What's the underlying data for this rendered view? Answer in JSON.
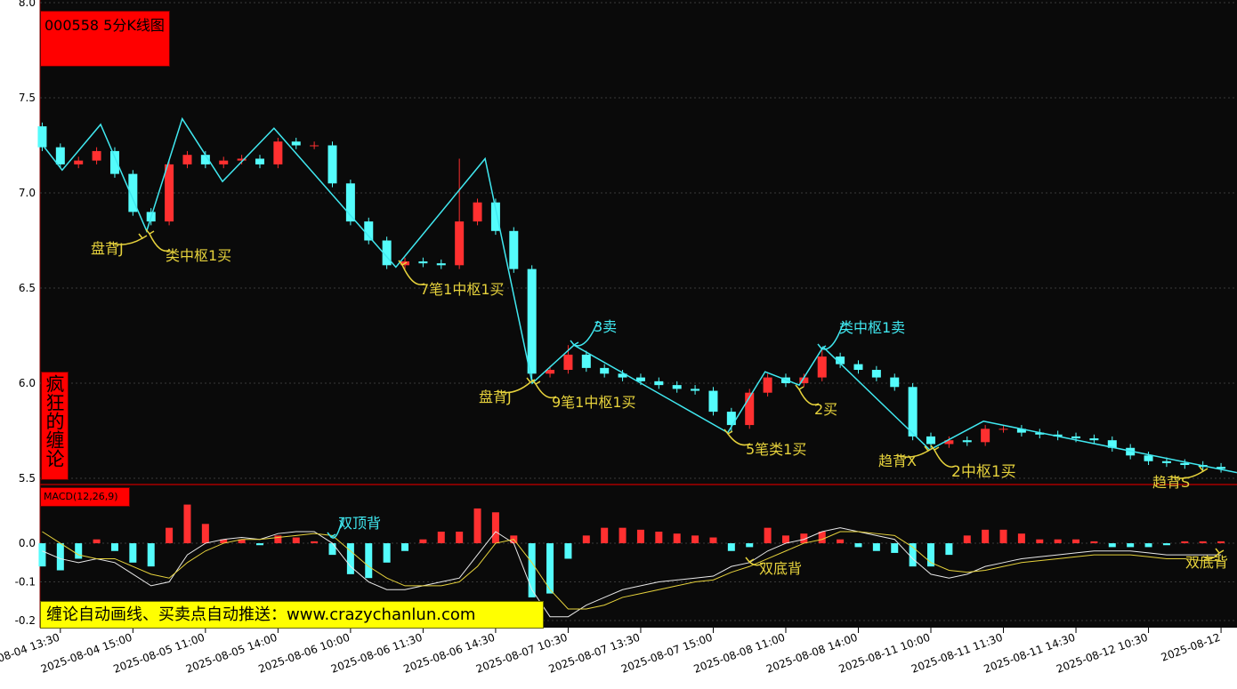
{
  "title": "000558 5分K线图",
  "side_label": "疯狂的缠论",
  "macd_label": "MACD(12,26,9)",
  "banner": "缠论自动画线、买卖点自动推送：www.crazychanlun.com",
  "annotations": [
    "盘背J",
    "类中枢1买",
    "7笔1中枢1买",
    "3卖",
    "盘背J",
    "9笔1中枢1买",
    "5笔类1买",
    "类中枢1卖",
    "2买",
    "趋背X",
    "2中枢1买",
    "趋背S",
    "双顶背",
    "双底背",
    "双底背"
  ],
  "chart_data": [
    {
      "type": "candlestick",
      "xlim": [
        -5.6,
        324.4
      ],
      "ylim": [
        5.5,
        8.0
      ],
      "yticks": [
        {
          "value": 8.0,
          "label": "8.0"
        },
        {
          "value": 7.5,
          "label": "7.5"
        },
        {
          "value": 7.0,
          "label": "7.0"
        },
        {
          "value": 6.5,
          "label": "6.5"
        },
        {
          "value": 6.0,
          "label": "6.0"
        },
        {
          "value": 5.5,
          "label": "5.5"
        }
      ],
      "xticks": [
        {
          "value": 0,
          "label": "2025-08-04 13:30"
        },
        {
          "value": 20,
          "label": "2025-08-04 15:00"
        },
        {
          "value": 40,
          "label": "2025-08-05 11:00"
        },
        {
          "value": 60,
          "label": "2025-08-05 14:00"
        },
        {
          "value": 80,
          "label": "2025-08-06 10:00"
        },
        {
          "value": 100,
          "label": "2025-08-06 11:30"
        },
        {
          "value": 120,
          "label": "2025-08-06 14:30"
        },
        {
          "value": 140,
          "label": "2025-08-07 10:30"
        },
        {
          "value": 160,
          "label": "2025-08-07 13:30"
        },
        {
          "value": 180,
          "label": "2025-08-07 15:00"
        },
        {
          "value": 200,
          "label": "2025-08-08 11:00"
        },
        {
          "value": 220,
          "label": "2025-08-08 14:00"
        },
        {
          "value": 240,
          "label": "2025-08-11 10:00"
        },
        {
          "value": 260,
          "label": "2025-08-11 11:30"
        },
        {
          "value": 280,
          "label": "2025-08-11 14:30"
        },
        {
          "value": 300,
          "label": "2025-08-12 10:30"
        },
        {
          "value": 320,
          "label": "2025-08-12"
        }
      ],
      "grid": true,
      "up_color": "#ff3030",
      "down_color": "#54fcfc",
      "bi_color": "#40e8f0",
      "x": [
        -5,
        0,
        5,
        10,
        15,
        20,
        25,
        30,
        35,
        40,
        45,
        50,
        55,
        60,
        65,
        70,
        75,
        80,
        85,
        90,
        95,
        100,
        105,
        110,
        115,
        120,
        125,
        130,
        135,
        140,
        145,
        150,
        155,
        160,
        165,
        170,
        175,
        180,
        185,
        190,
        195,
        200,
        205,
        210,
        215,
        220,
        225,
        230,
        235,
        240,
        245,
        250,
        255,
        260,
        265,
        270,
        275,
        280,
        285,
        290,
        295,
        300,
        305,
        310,
        315,
        320
      ],
      "open": [
        7.35,
        7.24,
        7.15,
        7.17,
        7.22,
        7.1,
        6.9,
        6.85,
        7.15,
        7.2,
        7.15,
        7.17,
        7.18,
        7.15,
        7.27,
        7.25,
        7.25,
        7.05,
        6.85,
        6.75,
        6.62,
        6.64,
        6.63,
        6.62,
        6.85,
        6.95,
        6.8,
        6.6,
        6.05,
        6.07,
        6.15,
        6.08,
        6.05,
        6.03,
        6.01,
        5.99,
        5.97,
        5.96,
        5.85,
        5.78,
        5.95,
        6.03,
        6.0,
        6.03,
        6.14,
        6.1,
        6.07,
        6.03,
        5.98,
        5.72,
        5.68,
        5.7,
        5.69,
        5.76,
        5.76,
        5.74,
        5.73,
        5.72,
        5.71,
        5.7,
        5.66,
        5.62,
        5.59,
        5.58,
        5.57,
        5.56
      ],
      "high": [
        7.37,
        7.26,
        7.19,
        7.24,
        7.24,
        7.12,
        6.92,
        7.17,
        7.22,
        7.22,
        7.19,
        7.2,
        7.2,
        7.29,
        7.29,
        7.27,
        7.27,
        7.07,
        6.87,
        6.77,
        6.66,
        6.66,
        6.65,
        7.18,
        6.97,
        6.97,
        6.82,
        6.62,
        6.09,
        6.2,
        6.17,
        6.1,
        6.07,
        6.05,
        6.03,
        6.01,
        5.99,
        5.98,
        5.87,
        5.97,
        6.05,
        6.05,
        6.05,
        6.19,
        6.16,
        6.12,
        6.09,
        6.05,
        6.0,
        5.74,
        5.72,
        5.72,
        5.78,
        5.78,
        5.78,
        5.76,
        5.75,
        5.74,
        5.73,
        5.72,
        5.68,
        5.64,
        5.61,
        5.6,
        5.59,
        5.58
      ],
      "low": [
        7.22,
        7.13,
        7.13,
        7.15,
        7.08,
        6.88,
        6.83,
        6.83,
        7.13,
        7.13,
        7.13,
        7.15,
        7.13,
        7.13,
        7.23,
        7.23,
        7.03,
        6.83,
        6.73,
        6.6,
        6.6,
        6.61,
        6.6,
        6.6,
        6.83,
        6.78,
        6.58,
        6.0,
        6.03,
        6.05,
        6.06,
        6.03,
        6.01,
        5.99,
        5.97,
        5.95,
        5.94,
        5.83,
        5.74,
        5.76,
        5.93,
        5.98,
        5.98,
        6.01,
        6.08,
        6.05,
        6.01,
        5.96,
        5.7,
        5.66,
        5.66,
        5.67,
        5.67,
        5.74,
        5.72,
        5.71,
        5.7,
        5.69,
        5.68,
        5.64,
        5.6,
        5.57,
        5.56,
        5.55,
        5.54,
        5.53
      ],
      "close": [
        7.24,
        7.15,
        7.17,
        7.22,
        7.1,
        6.9,
        6.85,
        7.15,
        7.2,
        7.15,
        7.17,
        7.18,
        7.15,
        7.27,
        7.25,
        7.25,
        7.05,
        6.85,
        6.75,
        6.62,
        6.64,
        6.63,
        6.62,
        6.85,
        6.95,
        6.8,
        6.6,
        6.05,
        6.07,
        6.15,
        6.08,
        6.05,
        6.03,
        6.01,
        5.99,
        5.97,
        5.96,
        5.85,
        5.78,
        5.95,
        6.03,
        6.0,
        6.03,
        6.14,
        6.1,
        6.07,
        6.03,
        5.98,
        5.72,
        5.68,
        5.7,
        5.69,
        5.76,
        5.76,
        5.74,
        5.73,
        5.72,
        5.71,
        5.7,
        5.66,
        5.62,
        5.59,
        5.58,
        5.57,
        5.56,
        5.55
      ],
      "bi": {
        "x": [
          -4.4,
          0.5,
          11.1,
          23.8,
          33.6,
          44.7,
          58.9,
          92.5,
          117.1,
          130.1,
          141.6,
          184.0,
          194.3,
          203.7,
          210.3,
          239.7,
          254.5,
          324.4
        ],
        "y": [
          7.24,
          7.12,
          7.36,
          6.8,
          7.39,
          7.06,
          7.34,
          6.61,
          7.18,
          6.0,
          6.2,
          5.74,
          6.06,
          5.99,
          6.19,
          5.65,
          5.8,
          5.53
        ]
      }
    },
    {
      "type": "macd",
      "ylim": [
        -0.216,
        0.145
      ],
      "yticks": [
        {
          "value": 0,
          "label": "0.0"
        },
        {
          "value": -0.1,
          "label": "-0.1"
        },
        {
          "value": -0.2,
          "label": "-0.2"
        }
      ],
      "hist": [
        -0.06,
        -0.07,
        -0.04,
        0.01,
        -0.02,
        -0.05,
        -0.06,
        0.04,
        0.1,
        0.05,
        0.01,
        0.01,
        -0.005,
        0.02,
        0.015,
        0.005,
        -0.03,
        -0.08,
        -0.09,
        -0.05,
        -0.02,
        0.01,
        0.03,
        0.03,
        0.09,
        0.08,
        0.02,
        -0.14,
        -0.13,
        -0.04,
        0.02,
        0.04,
        0.04,
        0.035,
        0.03,
        0.025,
        0.02,
        0.015,
        -0.02,
        -0.01,
        0.04,
        0.02,
        0.025,
        0.03,
        0.01,
        -0.01,
        -0.02,
        -0.025,
        -0.06,
        -0.06,
        -0.03,
        0.02,
        0.035,
        0.035,
        0.025,
        0.01,
        0.01,
        0.01,
        0.005,
        -0.01,
        -0.01,
        -0.01,
        -0.005,
        0.005,
        0.005,
        0.005
      ],
      "series": [
        {
          "name": "DIF",
          "color": "#e8e8e8",
          "values": [
            -0.02,
            -0.04,
            -0.05,
            -0.04,
            -0.05,
            -0.08,
            -0.11,
            -0.1,
            -0.03,
            0.0,
            0.01,
            0.015,
            0.01,
            0.025,
            0.03,
            0.03,
            0.0,
            -0.06,
            -0.1,
            -0.12,
            -0.12,
            -0.11,
            -0.1,
            -0.09,
            -0.03,
            0.03,
            0.0,
            -0.12,
            -0.19,
            -0.19,
            -0.16,
            -0.14,
            -0.12,
            -0.11,
            -0.1,
            -0.095,
            -0.09,
            -0.085,
            -0.06,
            -0.05,
            -0.02,
            0.0,
            0.01,
            0.03,
            0.04,
            0.03,
            0.02,
            0.01,
            -0.04,
            -0.08,
            -0.09,
            -0.08,
            -0.06,
            -0.05,
            -0.04,
            -0.035,
            -0.03,
            -0.025,
            -0.02,
            -0.02,
            -0.02,
            -0.025,
            -0.03,
            -0.03,
            -0.03,
            -0.03
          ]
        },
        {
          "name": "DEA",
          "color": "#e6d23c",
          "values": [
            0.03,
            0.0,
            -0.03,
            -0.04,
            -0.04,
            -0.06,
            -0.08,
            -0.09,
            -0.05,
            -0.02,
            0.0,
            0.01,
            0.01,
            0.015,
            0.02,
            0.025,
            0.02,
            -0.02,
            -0.06,
            -0.09,
            -0.11,
            -0.11,
            -0.11,
            -0.1,
            -0.06,
            0.0,
            0.01,
            -0.05,
            -0.12,
            -0.17,
            -0.17,
            -0.16,
            -0.14,
            -0.13,
            -0.12,
            -0.11,
            -0.1,
            -0.095,
            -0.075,
            -0.06,
            -0.04,
            -0.02,
            0.0,
            0.01,
            0.03,
            0.03,
            0.025,
            0.02,
            -0.01,
            -0.05,
            -0.07,
            -0.075,
            -0.07,
            -0.06,
            -0.05,
            -0.045,
            -0.04,
            -0.035,
            -0.03,
            -0.03,
            -0.03,
            -0.035,
            -0.04,
            -0.04,
            -0.045,
            -0.045
          ]
        }
      ]
    }
  ]
}
